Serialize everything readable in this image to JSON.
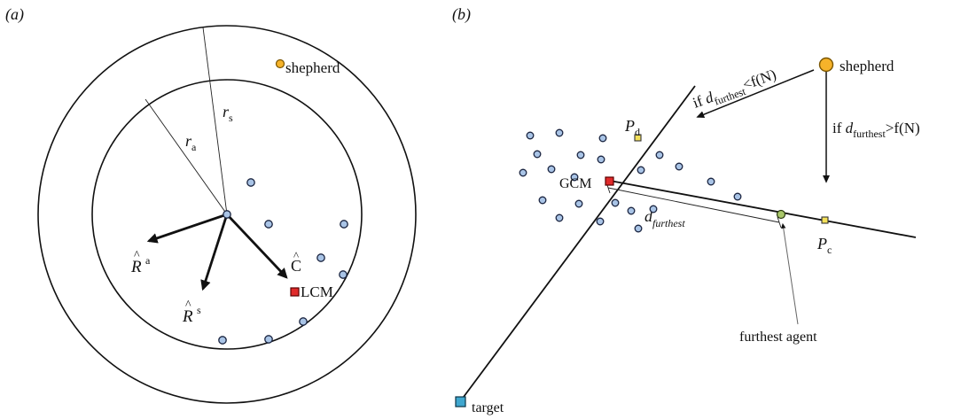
{
  "panel_a": {
    "label": "(a)",
    "shepherd_label": "shepherd",
    "r_s": {
      "base": "r",
      "sub": "s"
    },
    "r_a": {
      "base": "r",
      "sub": "a"
    },
    "R_a": {
      "base": "R",
      "sup": "a"
    },
    "R_s": {
      "base": "R",
      "sup": "s"
    },
    "C_hat": "C",
    "lcm_label": "LCM"
  },
  "panel_b": {
    "label": "(b)",
    "shepherd_label": "shepherd",
    "p_d": {
      "base": "P",
      "sub": "d"
    },
    "p_c": {
      "base": "P",
      "sub": "c"
    },
    "gcm_label": "GCM",
    "d_furthest": {
      "base": "d",
      "sub": "furthest"
    },
    "cond_lt": {
      "pre": "if",
      "base": "d",
      "sub": "furthest",
      "post": "<f(N)"
    },
    "cond_gt": {
      "pre": "if",
      "base": "d",
      "sub": "furthest",
      "post": ">f(N)"
    },
    "furthest_agent_label": "furthest agent",
    "target_label": "target"
  },
  "colors": {
    "agent": "#a9c4e6",
    "shepherd": "#f6b32a",
    "center_of_mass": "#e02a2a",
    "point": "#f3e05a",
    "furthest_agent": "#a9c76a",
    "target": "#3fa7cf"
  }
}
